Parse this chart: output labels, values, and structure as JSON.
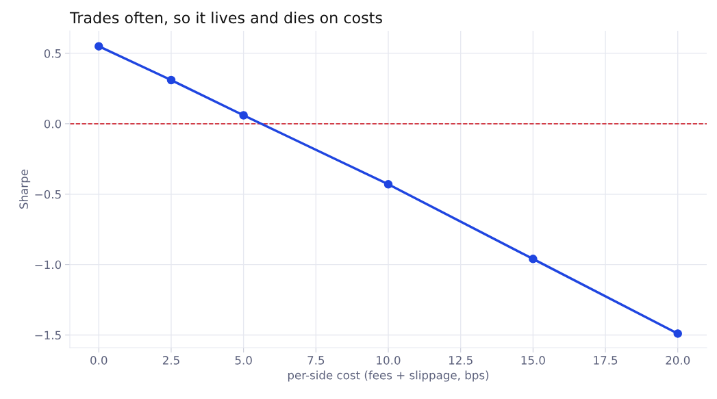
{
  "chart_data": {
    "type": "line",
    "title": "Trades often, so it lives and dies on costs",
    "xlabel": "per-side cost (fees + slippage, bps)",
    "ylabel": "Sharpe",
    "x": [
      0,
      2.5,
      5,
      10,
      15,
      20
    ],
    "series": [
      {
        "color": "#1f45e0",
        "values": [
          0.55,
          0.31,
          0.06,
          -0.43,
          -0.96,
          -1.49
        ]
      }
    ],
    "xlim": [
      -1,
      21
    ],
    "ylim": [
      -1.59,
      0.66
    ],
    "xticks": [
      {
        "value": 0,
        "label": "0.0"
      },
      2.5,
      {
        "value": 5,
        "label": "5.0"
      },
      7.5,
      {
        "value": 10,
        "label": "10.0"
      },
      12.5,
      {
        "value": 15,
        "label": "15.0"
      },
      17.5,
      {
        "value": 20,
        "label": "20.0"
      }
    ],
    "yticks": [
      {
        "value": -1.5,
        "label": "−1.5"
      },
      {
        "value": -1,
        "label": "−1.0"
      },
      {
        "value": -0.5,
        "label": "−0.5"
      },
      {
        "value": 0,
        "label": "0.0"
      },
      0.5
    ],
    "ref_lines": [
      {
        "axis": "y",
        "value": 0,
        "color": "#d1343f",
        "line_style": "dashed"
      }
    ],
    "grid": true,
    "marker": "circle",
    "line_style": "solid"
  }
}
